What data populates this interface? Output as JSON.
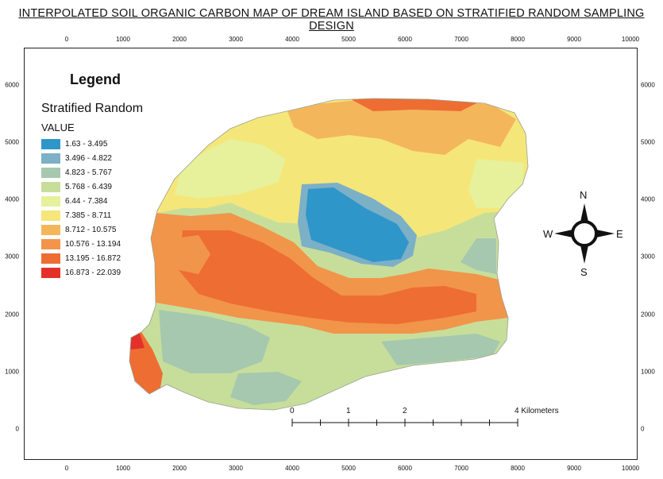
{
  "title": "INTERPOLATED SOIL ORGANIC CARBON MAP OF DREAM ISLAND BASED ON STRATIFIED RANDOM SAMPLING DESIGN",
  "axes": {
    "x_ticks": [
      "0",
      "1000",
      "2000",
      "3000",
      "4000",
      "5000",
      "6000",
      "7000",
      "8000",
      "9000",
      "10000"
    ],
    "y_ticks": [
      "6000",
      "5000",
      "4000",
      "3000",
      "2000",
      "1000",
      "0"
    ]
  },
  "legend": {
    "heading": "Legend",
    "layer": "Stratified Random",
    "field": "VALUE",
    "classes": [
      {
        "label": "1.63 - 3.495",
        "color": "#2e96c9"
      },
      {
        "label": "3.496 - 4.822",
        "color": "#7cb0c6"
      },
      {
        "label": "4.823 - 5.767",
        "color": "#a5c8af"
      },
      {
        "label": "5.768 - 6.439",
        "color": "#c7de9b"
      },
      {
        "label": "6.44 - 7.384",
        "color": "#e7f09a"
      },
      {
        "label": "7.385 - 8.711",
        "color": "#f5e67a"
      },
      {
        "label": "8.712 - 10.575",
        "color": "#f4b65b"
      },
      {
        "label": "10.576 - 13.194",
        "color": "#f1954a"
      },
      {
        "label": "13.195 - 16.872",
        "color": "#ee6d33"
      },
      {
        "label": "16.873 - 22.039",
        "color": "#e3312a"
      }
    ]
  },
  "north_arrow": {
    "n": "N",
    "s": "S",
    "e": "E",
    "w": "W"
  },
  "scale_bar": {
    "labels": [
      "0",
      "1",
      "2",
      "4 Kilometers"
    ]
  }
}
